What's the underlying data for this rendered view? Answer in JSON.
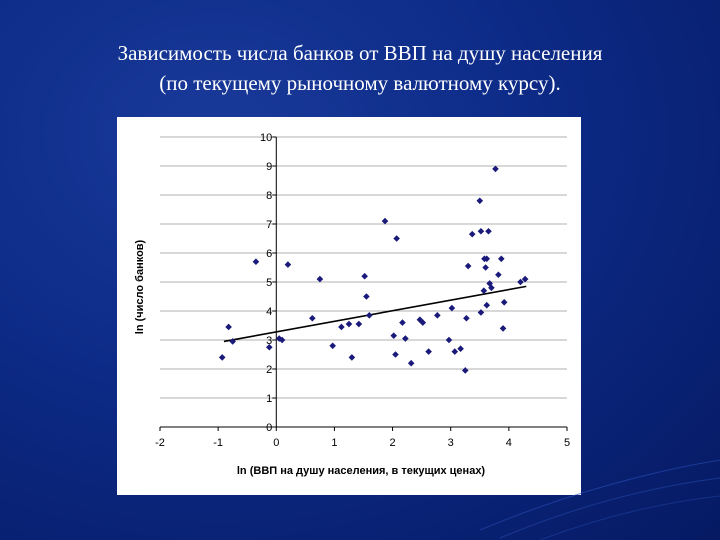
{
  "slide": {
    "title_line1": "Зависимость числа банков от ВВП на душу населения",
    "title_line2": "(по текущему рыночному валютному курсу)."
  },
  "chart_data": {
    "type": "scatter",
    "xlabel": "ln (ВВП на душу населения, в текущих ценах)",
    "ylabel": "ln (число банков)",
    "xlim": [
      -2,
      5
    ],
    "ylim": [
      0,
      10
    ],
    "x_ticks": [
      -2,
      -1,
      0,
      1,
      2,
      3,
      4,
      5
    ],
    "y_ticks": [
      0,
      1,
      2,
      3,
      4,
      5,
      6,
      7,
      8,
      9,
      10
    ],
    "grid": "horizontal",
    "marker_color": "#1a1a7a",
    "line_color": "#000000",
    "points": [
      {
        "x": -0.93,
        "y": 2.4
      },
      {
        "x": -0.82,
        "y": 3.45
      },
      {
        "x": -0.75,
        "y": 2.95
      },
      {
        "x": -0.35,
        "y": 5.7
      },
      {
        "x": -0.12,
        "y": 2.75
      },
      {
        "x": 0.05,
        "y": 3.05
      },
      {
        "x": 0.1,
        "y": 3.0
      },
      {
        "x": 0.2,
        "y": 5.6
      },
      {
        "x": 0.62,
        "y": 3.75
      },
      {
        "x": 0.75,
        "y": 5.1
      },
      {
        "x": 0.97,
        "y": 2.8
      },
      {
        "x": 1.12,
        "y": 3.45
      },
      {
        "x": 1.25,
        "y": 3.55
      },
      {
        "x": 1.3,
        "y": 2.4
      },
      {
        "x": 1.42,
        "y": 3.55
      },
      {
        "x": 1.52,
        "y": 5.2
      },
      {
        "x": 1.55,
        "y": 4.5
      },
      {
        "x": 1.6,
        "y": 3.85
      },
      {
        "x": 1.87,
        "y": 7.1
      },
      {
        "x": 2.02,
        "y": 3.15
      },
      {
        "x": 2.05,
        "y": 2.5
      },
      {
        "x": 2.07,
        "y": 6.5
      },
      {
        "x": 2.17,
        "y": 3.6
      },
      {
        "x": 2.22,
        "y": 3.05
      },
      {
        "x": 2.32,
        "y": 2.2
      },
      {
        "x": 2.47,
        "y": 3.7
      },
      {
        "x": 2.52,
        "y": 3.6
      },
      {
        "x": 2.62,
        "y": 2.6
      },
      {
        "x": 2.77,
        "y": 3.85
      },
      {
        "x": 2.97,
        "y": 3.0
      },
      {
        "x": 3.02,
        "y": 4.1
      },
      {
        "x": 3.07,
        "y": 2.6
      },
      {
        "x": 3.17,
        "y": 2.7
      },
      {
        "x": 3.25,
        "y": 1.95
      },
      {
        "x": 3.27,
        "y": 3.75
      },
      {
        "x": 3.3,
        "y": 5.55
      },
      {
        "x": 3.37,
        "y": 6.65
      },
      {
        "x": 3.5,
        "y": 7.8
      },
      {
        "x": 3.52,
        "y": 6.75
      },
      {
        "x": 3.52,
        "y": 3.95
      },
      {
        "x": 3.57,
        "y": 4.7
      },
      {
        "x": 3.58,
        "y": 5.8
      },
      {
        "x": 3.6,
        "y": 5.5
      },
      {
        "x": 3.62,
        "y": 5.8
      },
      {
        "x": 3.62,
        "y": 4.2
      },
      {
        "x": 3.65,
        "y": 6.75
      },
      {
        "x": 3.67,
        "y": 4.95
      },
      {
        "x": 3.7,
        "y": 4.8
      },
      {
        "x": 3.77,
        "y": 8.9
      },
      {
        "x": 3.82,
        "y": 5.25
      },
      {
        "x": 3.87,
        "y": 5.8
      },
      {
        "x": 3.9,
        "y": 3.4
      },
      {
        "x": 3.92,
        "y": 4.3
      },
      {
        "x": 4.2,
        "y": 5.0
      },
      {
        "x": 4.28,
        "y": 5.1
      }
    ],
    "trendline": {
      "x": [
        -0.9,
        4.3
      ],
      "y": [
        2.95,
        4.85
      ]
    }
  }
}
